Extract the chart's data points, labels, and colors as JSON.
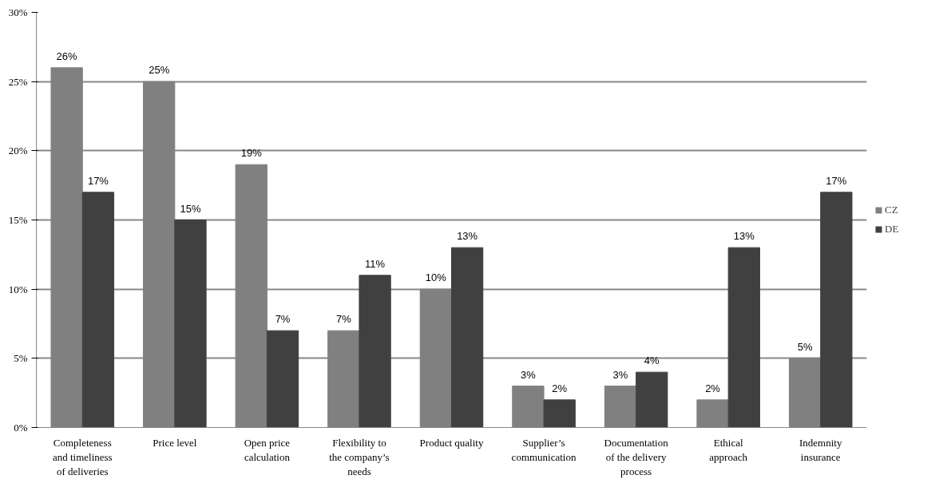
{
  "chart_data": {
    "type": "bar",
    "categories": [
      "Completeness\nand timeliness\nof deliveries",
      "Price level",
      "Open price\ncalculation",
      "Flexibility to\nthe company’s\nneeds",
      "Product quality",
      "Supplier’s\ncommunication",
      "Documentation\nof the delivery\nprocess",
      "Ethical\napproach",
      "Indemnity\ninsurance"
    ],
    "series": [
      {
        "name": "CZ",
        "color": "#808080",
        "values": [
          26,
          25,
          19,
          7,
          10,
          3,
          3,
          2,
          5
        ],
        "value_labels": [
          "26%",
          "25%",
          "19%",
          "7%",
          "10%",
          "3%",
          "3%",
          "2%",
          "5%"
        ]
      },
      {
        "name": "DE",
        "color": "#404040",
        "values": [
          17,
          15,
          7,
          11,
          13,
          2,
          4,
          13,
          17
        ],
        "value_labels": [
          "17%",
          "15%",
          "7%",
          "11%",
          "13%",
          "2%",
          "4%",
          "13%",
          "17%"
        ]
      }
    ],
    "ylim": [
      0,
      30
    ],
    "yticks": [
      {
        "value": 0,
        "label": "0%"
      },
      {
        "value": 5,
        "label": "5%"
      },
      {
        "value": 10,
        "label": "10%"
      },
      {
        "value": 15,
        "label": "15%"
      },
      {
        "value": 20,
        "label": "20%"
      },
      {
        "value": 25,
        "label": "25%"
      },
      {
        "value": 30,
        "label": "30%"
      }
    ],
    "grid": "y",
    "legend": "right"
  }
}
